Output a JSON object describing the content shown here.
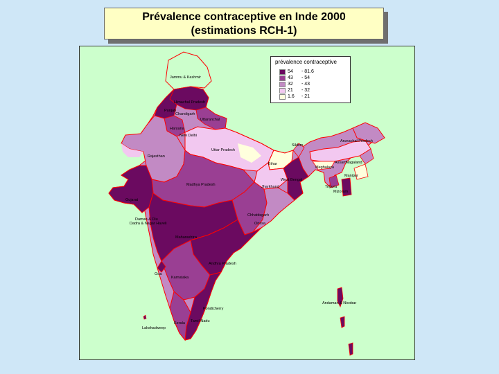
{
  "title": {
    "line1": "Prévalence contraceptive en Inde 2000",
    "line2": "(estimations RCH-1)"
  },
  "legend": {
    "title": "prévalence contraceptive",
    "classes": [
      {
        "low": "54",
        "high": "- 81.6",
        "color": "#6b0a60"
      },
      {
        "low": "43",
        "high": "- 54",
        "color": "#9a3f93"
      },
      {
        "low": "32",
        "high": "- 43",
        "color": "#c28ac4"
      },
      {
        "low": "21",
        "high": "- 32",
        "color": "#f2c8f0"
      },
      {
        "low": "1.6",
        "high": "- 21",
        "color": "#ffffdd"
      }
    ]
  },
  "colors": {
    "background": "#cfe7f7",
    "map_background": "#ccffcc",
    "boundary": "#ff0000"
  },
  "states": [
    {
      "name": "Jammu & Kashmir"
    },
    {
      "name": "Himachal Pradesh"
    },
    {
      "name": "Punjab"
    },
    {
      "name": "Chandigarh"
    },
    {
      "name": "Uttaranchal"
    },
    {
      "name": "Haryana"
    },
    {
      "name": "New Delhi"
    },
    {
      "name": "Rajasthan"
    },
    {
      "name": "Uttar Pradesh"
    },
    {
      "name": "Sikkim"
    },
    {
      "name": "Arunachal Pradesh"
    },
    {
      "name": "Assam"
    },
    {
      "name": "Nagaland"
    },
    {
      "name": "Meghalaya"
    },
    {
      "name": "Manipur"
    },
    {
      "name": "Bihar"
    },
    {
      "name": "West Bengal"
    },
    {
      "name": "Tripura"
    },
    {
      "name": "Mizoram"
    },
    {
      "name": "Jharkhand"
    },
    {
      "name": "Madhya Pradesh"
    },
    {
      "name": "Gujarat"
    },
    {
      "name": "Chhattisgarh"
    },
    {
      "name": "Daman & Diu"
    },
    {
      "name": "Dadra & Nagar Haveli"
    },
    {
      "name": "Orissa"
    },
    {
      "name": "Maharashtra"
    },
    {
      "name": "Andhra Pradesh"
    },
    {
      "name": "Goa"
    },
    {
      "name": "Karnataka"
    },
    {
      "name": "Andaman & Nicobar"
    },
    {
      "name": "Pondicherry"
    },
    {
      "name": "Tamil Nadu"
    },
    {
      "name": "Kerala"
    },
    {
      "name": "Lakshadweep"
    }
  ]
}
